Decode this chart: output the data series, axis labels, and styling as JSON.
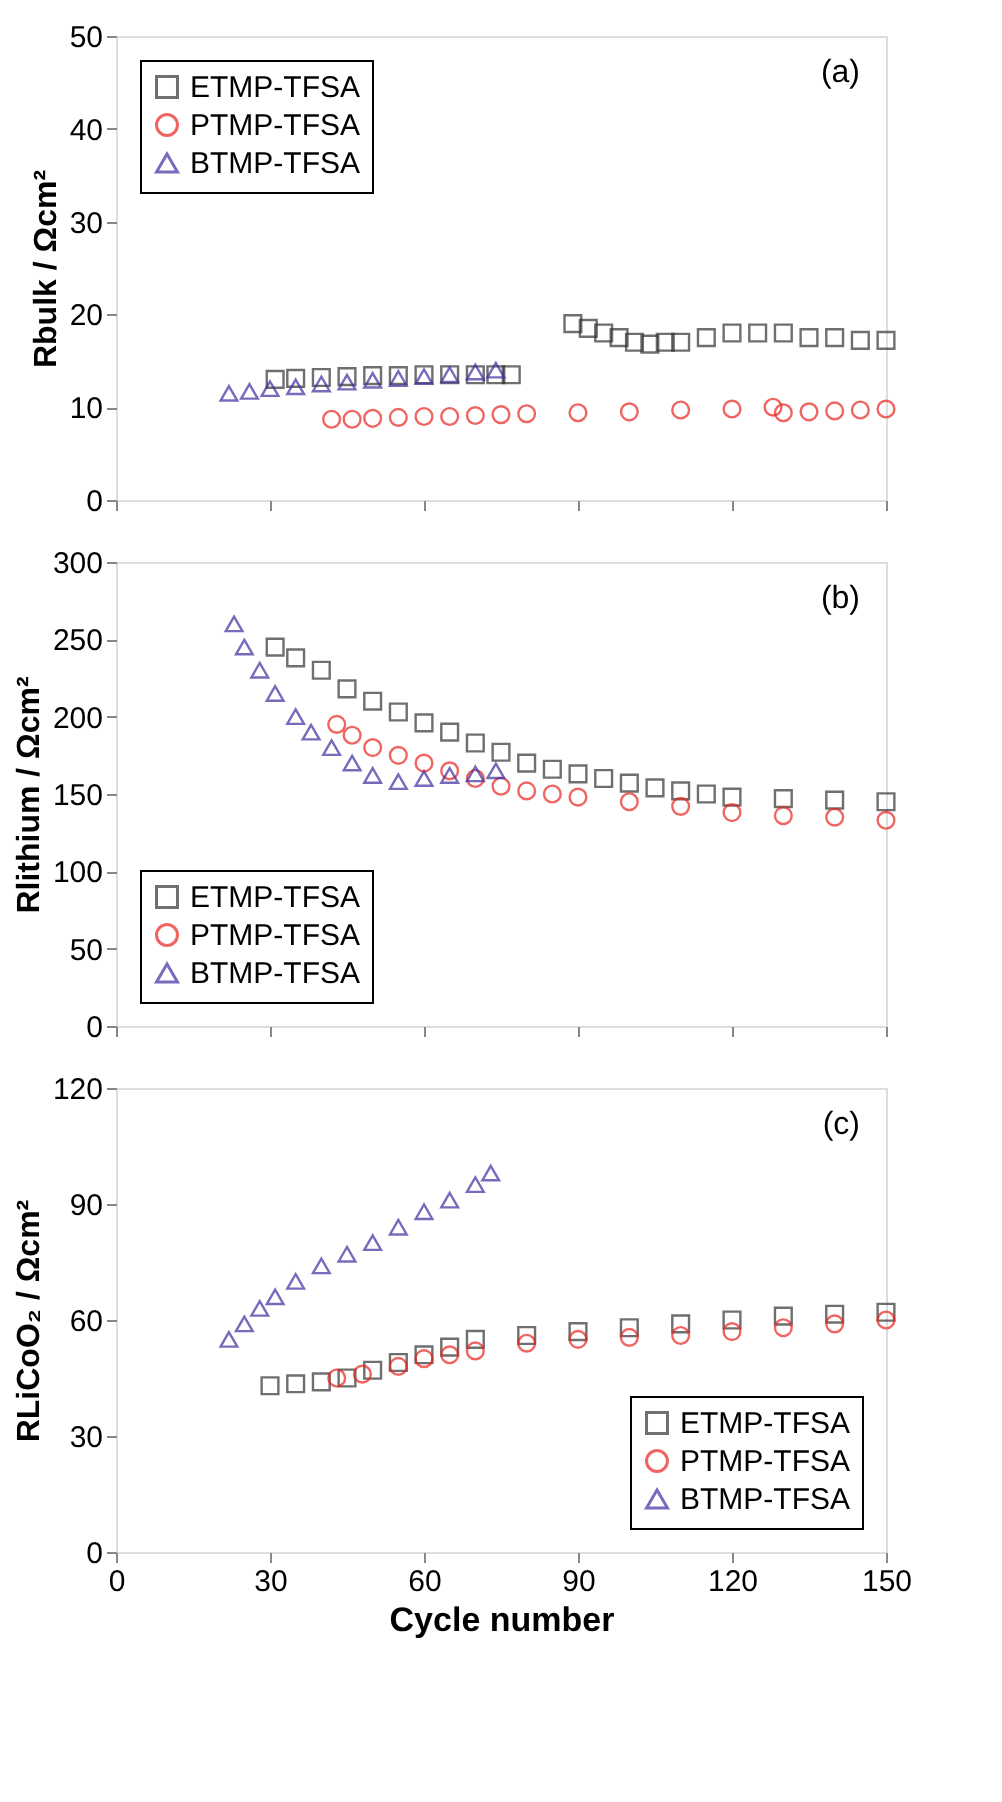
{
  "chart_data": [
    {
      "type": "scatter",
      "ylabel": "Rbulk / Ωcm²",
      "annotations": [
        "(a)"
      ],
      "xlim": [
        0,
        150
      ],
      "xticks": [
        0,
        30,
        60,
        90,
        120,
        150
      ],
      "ylim": [
        0,
        50
      ],
      "yticks": [
        0,
        10,
        20,
        30,
        40,
        50
      ],
      "tick_labels": "y",
      "grid": false,
      "legend": "top left",
      "series": [
        {
          "name": "ETMP-TFSA",
          "color": "#333333",
          "marker": "square",
          "x": [
            31,
            35,
            40,
            45,
            50,
            55,
            60,
            65,
            70,
            74,
            77,
            89,
            92,
            95,
            98,
            101,
            104,
            107,
            110,
            115,
            120,
            125,
            130,
            135,
            140,
            145,
            150
          ],
          "values": [
            13,
            13.1,
            13.2,
            13.3,
            13.4,
            13.4,
            13.5,
            13.5,
            13.5,
            13.5,
            13.5,
            19,
            18.5,
            18,
            17.5,
            17,
            16.8,
            17,
            17,
            17.5,
            18,
            18,
            18,
            17.5,
            17.5,
            17.2,
            17.2
          ]
        },
        {
          "name": "PTMP-TFSA",
          "color": "#e8251f",
          "marker": "circle",
          "x": [
            42,
            46,
            50,
            55,
            60,
            65,
            70,
            75,
            80,
            90,
            100,
            110,
            120,
            128,
            130,
            135,
            140,
            145,
            150
          ],
          "values": [
            8.7,
            8.7,
            8.8,
            8.9,
            9,
            9,
            9.1,
            9.2,
            9.3,
            9.4,
            9.5,
            9.7,
            9.8,
            10,
            9.4,
            9.5,
            9.6,
            9.7,
            9.8
          ]
        },
        {
          "name": "BTMP-TFSA",
          "color": "#3d2fa0",
          "marker": "triangle",
          "x": [
            22,
            26,
            30,
            35,
            40,
            45,
            50,
            55,
            60,
            65,
            70,
            74
          ],
          "values": [
            11.5,
            11.7,
            12,
            12.2,
            12.5,
            12.7,
            12.9,
            13.1,
            13.3,
            13.5,
            13.8,
            14
          ]
        }
      ]
    },
    {
      "type": "scatter",
      "ylabel": "Rlithium / Ωcm²",
      "annotations": [
        "(b)"
      ],
      "xlim": [
        0,
        150
      ],
      "xticks": [
        0,
        30,
        60,
        90,
        120,
        150
      ],
      "ylim": [
        0,
        300
      ],
      "yticks": [
        0,
        50,
        100,
        150,
        200,
        250,
        300
      ],
      "tick_labels": "y",
      "grid": false,
      "legend": "bottom left",
      "series": [
        {
          "name": "ETMP-TFSA",
          "color": "#333333",
          "marker": "square",
          "x": [
            31,
            35,
            40,
            45,
            50,
            55,
            60,
            65,
            70,
            75,
            80,
            85,
            90,
            95,
            100,
            105,
            110,
            115,
            120,
            130,
            140,
            150
          ],
          "values": [
            245,
            238,
            230,
            218,
            210,
            203,
            196,
            190,
            183,
            177,
            170,
            166,
            163,
            160,
            157,
            154,
            152,
            150,
            148,
            147,
            146,
            145
          ]
        },
        {
          "name": "PTMP-TFSA",
          "color": "#e8251f",
          "marker": "circle",
          "x": [
            43,
            46,
            50,
            55,
            60,
            65,
            70,
            75,
            80,
            85,
            90,
            100,
            110,
            120,
            130,
            140,
            150
          ],
          "values": [
            195,
            188,
            180,
            175,
            170,
            165,
            160,
            155,
            152,
            150,
            148,
            145,
            142,
            138,
            136,
            135,
            133
          ]
        },
        {
          "name": "BTMP-TFSA",
          "color": "#3d2fa0",
          "marker": "triangle",
          "x": [
            23,
            25,
            28,
            31,
            35,
            38,
            42,
            46,
            50,
            55,
            60,
            65,
            70,
            74
          ],
          "values": [
            260,
            245,
            230,
            215,
            200,
            190,
            180,
            170,
            162,
            158,
            160,
            162,
            163,
            165
          ]
        }
      ]
    },
    {
      "type": "scatter",
      "ylabel": "RLiCoO₂ / Ωcm²",
      "xlabel": "Cycle number",
      "annotations": [
        "(c)"
      ],
      "xlim": [
        0,
        150
      ],
      "xticks": [
        0,
        30,
        60,
        90,
        120,
        150
      ],
      "ylim": [
        0,
        120
      ],
      "yticks": [
        0,
        30,
        60,
        90,
        120
      ],
      "grid": false,
      "legend": "bottom right",
      "series": [
        {
          "name": "ETMP-TFSA",
          "color": "#333333",
          "marker": "square",
          "x": [
            30,
            35,
            40,
            45,
            50,
            55,
            60,
            65,
            70,
            80,
            90,
            100,
            110,
            120,
            130,
            140,
            150
          ],
          "values": [
            43,
            43.5,
            44,
            45,
            47,
            49,
            51,
            53,
            55,
            56,
            57,
            58,
            59,
            60,
            61,
            61.5,
            62
          ]
        },
        {
          "name": "PTMP-TFSA",
          "color": "#e8251f",
          "marker": "circle",
          "x": [
            43,
            48,
            55,
            60,
            65,
            70,
            80,
            90,
            100,
            110,
            120,
            130,
            140,
            150
          ],
          "values": [
            45,
            46,
            48,
            50,
            51,
            52,
            54,
            55,
            55.5,
            56,
            57,
            58,
            59,
            60
          ]
        },
        {
          "name": "BTMP-TFSA",
          "color": "#3d2fa0",
          "marker": "triangle",
          "x": [
            22,
            25,
            28,
            31,
            35,
            40,
            45,
            50,
            55,
            60,
            65,
            70,
            73
          ],
          "values": [
            55,
            59,
            63,
            66,
            70,
            74,
            77,
            80,
            84,
            88,
            91,
            95,
            98
          ]
        }
      ]
    }
  ]
}
